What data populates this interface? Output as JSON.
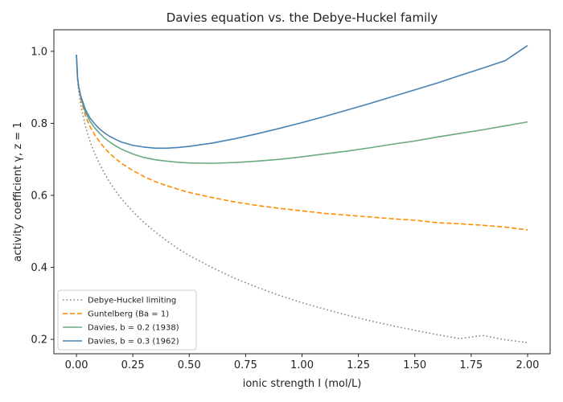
{
  "chart_data": {
    "type": "line",
    "title": "Davies equation vs. the Debye-Huckel family",
    "xlabel": "ionic strength I (mol/L)",
    "ylabel": "activity coefficient γ, z = 1",
    "xlim": [
      -0.1,
      2.1
    ],
    "ylim": [
      0.16,
      1.06
    ],
    "xticks": [
      0.0,
      0.25,
      0.5,
      0.75,
      1.0,
      1.25,
      1.5,
      1.75,
      2.0
    ],
    "xtick_labels": [
      "0.00",
      "0.25",
      "0.50",
      "0.75",
      "1.00",
      "1.25",
      "1.50",
      "1.75",
      "2.00"
    ],
    "yticks": [
      0.2,
      0.4,
      0.6,
      0.8,
      1.0
    ],
    "ytick_labels": [
      "0.2",
      "0.4",
      "0.6",
      "0.8",
      "1.0"
    ],
    "grid": false,
    "legend_position": "bottom-left",
    "x": [
      0.0,
      0.005,
      0.01,
      0.02,
      0.04,
      0.06,
      0.08,
      0.1,
      0.125,
      0.15,
      0.175,
      0.2,
      0.25,
      0.3,
      0.35,
      0.4,
      0.45,
      0.5,
      0.6,
      0.7,
      0.8,
      0.9,
      1.0,
      1.1,
      1.2,
      1.3,
      1.4,
      1.5,
      1.6,
      1.7,
      1.8,
      1.9,
      2.0
    ],
    "series": [
      {
        "name": "Debye-Huckel limiting",
        "style": "dotted",
        "color": "#808080",
        "values": [
          0.99,
          0.92,
          0.889,
          0.847,
          0.791,
          0.75,
          0.718,
          0.69,
          0.66,
          0.634,
          0.611,
          0.59,
          0.555,
          0.524,
          0.498,
          0.474,
          0.452,
          0.433,
          0.4,
          0.37,
          0.345,
          0.322,
          0.302,
          0.284,
          0.267,
          0.252,
          0.238,
          0.225,
          0.213,
          0.202,
          0.211,
          0.199,
          0.191
        ]
      },
      {
        "name": "Guntelberg (Ba = 1)",
        "style": "dashed",
        "color": "#ff8c00",
        "values": [
          0.99,
          0.925,
          0.898,
          0.864,
          0.821,
          0.791,
          0.769,
          0.751,
          0.731,
          0.715,
          0.701,
          0.689,
          0.669,
          0.652,
          0.638,
          0.627,
          0.617,
          0.608,
          0.594,
          0.582,
          0.572,
          0.564,
          0.557,
          0.55,
          0.545,
          0.54,
          0.535,
          0.531,
          0.524,
          0.521,
          0.517,
          0.512,
          0.504
        ]
      },
      {
        "name": "Davies, b = 0.2 (1938)",
        "style": "solid",
        "color": "#6aaa80",
        "values": [
          0.99,
          0.926,
          0.9,
          0.87,
          0.831,
          0.806,
          0.788,
          0.774,
          0.759,
          0.747,
          0.737,
          0.728,
          0.715,
          0.705,
          0.699,
          0.695,
          0.692,
          0.69,
          0.689,
          0.691,
          0.695,
          0.7,
          0.707,
          0.715,
          0.723,
          0.732,
          0.742,
          0.751,
          0.762,
          0.772,
          0.782,
          0.793,
          0.804
        ]
      },
      {
        "name": "Davies, b = 0.3 (1962)",
        "style": "solid",
        "color": "#4682b4",
        "values": [
          0.99,
          0.927,
          0.902,
          0.874,
          0.838,
          0.815,
          0.799,
          0.786,
          0.773,
          0.763,
          0.755,
          0.748,
          0.739,
          0.734,
          0.731,
          0.731,
          0.733,
          0.736,
          0.745,
          0.757,
          0.771,
          0.786,
          0.802,
          0.819,
          0.837,
          0.855,
          0.874,
          0.893,
          0.912,
          0.933,
          0.953,
          0.974,
          1.016
        ]
      }
    ]
  }
}
